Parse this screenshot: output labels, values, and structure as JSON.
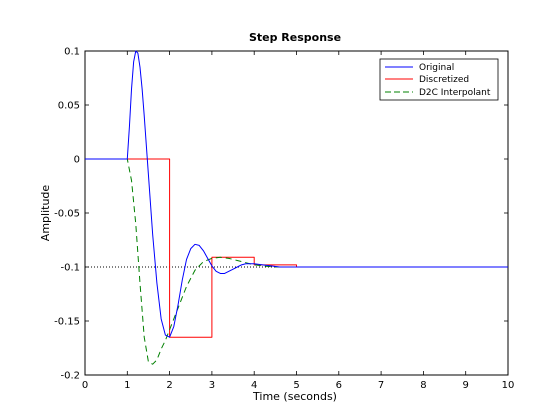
{
  "chart_data": {
    "type": "line",
    "title": "Step Response",
    "xlabel": "Time (seconds)",
    "ylabel": "Amplitude",
    "xlim": [
      0,
      10
    ],
    "ylim": [
      -0.2,
      0.1
    ],
    "xticks": [
      0,
      1,
      2,
      3,
      4,
      5,
      6,
      7,
      8,
      9,
      10
    ],
    "yticks": [
      -0.2,
      -0.15,
      -0.1,
      -0.05,
      0,
      0.05,
      0.1
    ],
    "xtick_labels": [
      "0",
      "1",
      "2",
      "3",
      "4",
      "5",
      "6",
      "7",
      "8",
      "9",
      "10"
    ],
    "ytick_labels": [
      "-0.2",
      "-0.15",
      "-0.1",
      "-0.05",
      "0",
      "0.05",
      "0.1"
    ],
    "grid": false,
    "legend_position": "top-right",
    "reference_line": {
      "y": -0.1,
      "style": "dotted",
      "color": "#000000"
    },
    "series": [
      {
        "name": "Original",
        "color": "#0000ff",
        "style": "solid",
        "x": [
          0,
          1.0,
          1.05,
          1.1,
          1.15,
          1.2,
          1.25,
          1.3,
          1.35,
          1.4,
          1.5,
          1.6,
          1.7,
          1.8,
          1.9,
          2.0,
          2.1,
          2.2,
          2.3,
          2.4,
          2.5,
          2.6,
          2.7,
          2.8,
          2.9,
          3.0,
          3.1,
          3.2,
          3.3,
          3.4,
          3.5,
          3.6,
          3.7,
          3.8,
          4.0,
          4.2,
          4.4,
          4.6,
          4.8,
          5.0,
          5.5,
          6.0,
          7.0,
          8.0,
          9.0,
          10.0
        ],
        "y": [
          0,
          0,
          0.03,
          0.065,
          0.09,
          0.1,
          0.098,
          0.085,
          0.065,
          0.04,
          -0.015,
          -0.07,
          -0.115,
          -0.148,
          -0.163,
          -0.165,
          -0.155,
          -0.135,
          -0.112,
          -0.093,
          -0.083,
          -0.079,
          -0.08,
          -0.085,
          -0.092,
          -0.099,
          -0.104,
          -0.106,
          -0.106,
          -0.104,
          -0.102,
          -0.1,
          -0.098,
          -0.097,
          -0.097,
          -0.098,
          -0.099,
          -0.1,
          -0.1,
          -0.1,
          -0.1,
          -0.1,
          -0.1,
          -0.1,
          -0.1,
          -0.1
        ]
      },
      {
        "name": "Discretized",
        "color": "#ff0000",
        "style": "step",
        "x": [
          0,
          2,
          2,
          3,
          3,
          4,
          4,
          5,
          5,
          6,
          6,
          10
        ],
        "y": [
          0,
          0,
          -0.165,
          -0.165,
          -0.091,
          -0.091,
          -0.098,
          -0.098,
          -0.1,
          -0.1,
          -0.1,
          -0.1
        ]
      },
      {
        "name": "D2C Interpolant",
        "color": "#008000",
        "style": "dashed",
        "x": [
          0,
          1.0,
          1.1,
          1.2,
          1.3,
          1.4,
          1.5,
          1.6,
          1.7,
          1.8,
          1.9,
          2.0,
          2.2,
          2.4,
          2.6,
          2.8,
          3.0,
          3.2,
          3.4,
          3.6,
          3.8,
          4.0,
          4.2,
          4.5,
          5.0,
          5.5,
          6.0,
          7.0,
          8.0,
          9.0,
          10.0
        ],
        "y": [
          0,
          0,
          -0.02,
          -0.06,
          -0.115,
          -0.165,
          -0.188,
          -0.19,
          -0.186,
          -0.176,
          -0.168,
          -0.158,
          -0.138,
          -0.118,
          -0.103,
          -0.095,
          -0.092,
          -0.091,
          -0.092,
          -0.094,
          -0.096,
          -0.098,
          -0.099,
          -0.1,
          -0.1,
          -0.1,
          -0.1,
          -0.1,
          -0.1,
          -0.1,
          -0.1
        ]
      }
    ]
  }
}
